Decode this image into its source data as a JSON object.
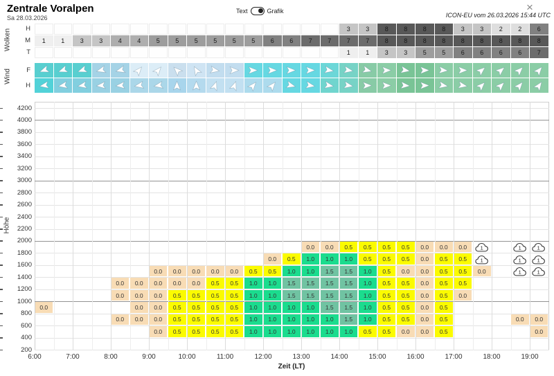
{
  "header": {
    "title": "Zentrale Voralpen",
    "date": "Sa 28.03.2026",
    "toggle_left": "Text",
    "toggle_right": "Grafik",
    "toggle_state": "Grafik",
    "model_info": "ICON-EU vom 26.03.2026 15:44 UTC",
    "close_glyph": "×"
  },
  "wolken": {
    "section_label": "Wolken",
    "value_colors": {
      "1": "#efefef",
      "2": "#dedede",
      "3": "#c5c5c5",
      "4": "#aeaeae",
      "5": "#9d9d9d",
      "6": "#818181",
      "7": "#6c6c6c",
      "8": "#585858"
    },
    "rows": [
      {
        "label": "H",
        "values": [
          null,
          null,
          null,
          null,
          null,
          null,
          null,
          null,
          null,
          null,
          null,
          null,
          null,
          null,
          null,
          null,
          3,
          3,
          8,
          8,
          8,
          8,
          3,
          3,
          2,
          2,
          6
        ]
      },
      {
        "label": "M",
        "values": [
          1,
          1,
          3,
          3,
          4,
          4,
          5,
          5,
          5,
          5,
          5,
          5,
          6,
          6,
          7,
          7,
          7,
          7,
          8,
          8,
          8,
          8,
          8,
          8,
          8,
          8,
          8
        ]
      },
      {
        "label": "T",
        "values": [
          null,
          null,
          null,
          null,
          null,
          null,
          null,
          null,
          null,
          null,
          null,
          null,
          null,
          null,
          null,
          null,
          1,
          1,
          3,
          3,
          5,
          5,
          6,
          6,
          6,
          6,
          7
        ]
      }
    ]
  },
  "wind": {
    "section_label": "Wind",
    "rows": [
      {
        "label": "F",
        "dirs": [
          160,
          160,
          160,
          165,
          165,
          -50,
          -50,
          -135,
          -120,
          10,
          0,
          0,
          0,
          0,
          0,
          10,
          10,
          15,
          0,
          10,
          0,
          5,
          0,
          -40,
          -40,
          -45,
          -50
        ],
        "colors": [
          "#58cfd0",
          "#58cfd0",
          "#58cfd0",
          "#a5d3e6",
          "#a5d3e6",
          "#dcedf7",
          "#dcedf7",
          "#cadfee",
          "#cfe4f3",
          "#c2ddef",
          "#c2ddef",
          "#66d8e2",
          "#66d8e2",
          "#66d8e2",
          "#66d8e2",
          "#6cd7d8",
          "#77d3c6",
          "#88cba6",
          "#8bcda6",
          "#79c496",
          "#79c496",
          "#8bcda6",
          "#8bcda6",
          "#8bcda6",
          "#8bcda6",
          "#8bcda6",
          "#8bcda6"
        ]
      },
      {
        "label": "H",
        "dirs": [
          170,
          170,
          170,
          175,
          175,
          170,
          170,
          -90,
          -90,
          -70,
          -70,
          -50,
          -50,
          15,
          10,
          10,
          10,
          0,
          0,
          5,
          0,
          10,
          10,
          -45,
          -45,
          -50,
          -55
        ],
        "colors": [
          "#52d2d8",
          "#82cfdf",
          "#82cfdf",
          "#99d1e3",
          "#99d1e3",
          "#abd7e9",
          "#abd7e9",
          "#a8d5ec",
          "#b4daee",
          "#c2e0f1",
          "#c2e0f1",
          "#addbed",
          "#addbed",
          "#66d8e2",
          "#66d8e2",
          "#70d5ce",
          "#77d3c6",
          "#88cba6",
          "#8bcda6",
          "#79c496",
          "#79c496",
          "#8bcda6",
          "#8bcda6",
          "#8bcda6",
          "#8bcda6",
          "#8bcda6",
          "#8bcda6"
        ]
      }
    ]
  },
  "chart_data": {
    "type": "heatmap",
    "ylabel": "Höhe",
    "xlabel": "Zeit (LT)",
    "y_ticks": [
      4200,
      4000,
      3800,
      3600,
      3400,
      3200,
      3000,
      2800,
      2600,
      2400,
      2200,
      2000,
      1800,
      1600,
      1400,
      1200,
      1000,
      800,
      600,
      400,
      200
    ],
    "x_hour_labels": [
      "6:00",
      "7:00",
      "8:00",
      "9:00",
      "10:00",
      "11:00",
      "12:00",
      "13:00",
      "14:00",
      "15:00",
      "16:00",
      "17:00",
      "18:00",
      "19:00"
    ],
    "first_col_time": "6:00",
    "col_minutes": 30,
    "n_cols": 27,
    "band_height_m": 200,
    "value_colors": {
      "0.0": "#f8dcb5",
      "0.5": "#fbfb00",
      "1.0": "#1bdc8e",
      "1.5": "#70c3a2"
    },
    "cloud_label": "1",
    "bands": [
      {
        "top": 2000,
        "bottom": 1800,
        "cells": [
          null,
          null,
          null,
          null,
          null,
          null,
          null,
          null,
          null,
          null,
          null,
          null,
          null,
          null,
          "0.0",
          "0.0",
          "0.5",
          "0.5",
          "0.5",
          "0.5",
          "0.0",
          "0.0",
          "0.0",
          "C",
          null,
          "C",
          "C"
        ]
      },
      {
        "top": 1800,
        "bottom": 1600,
        "cells": [
          null,
          null,
          null,
          null,
          null,
          null,
          null,
          null,
          null,
          null,
          null,
          null,
          "0.0",
          "0.5",
          "1.0",
          "1.0",
          "1.0",
          "0.5",
          "0.5",
          "0.5",
          "0.0",
          "0.5",
          "0.5",
          "C",
          null,
          "C",
          "C"
        ]
      },
      {
        "top": 1600,
        "bottom": 1400,
        "cells": [
          null,
          null,
          null,
          null,
          null,
          null,
          "0.0",
          "0.0",
          "0.0",
          "0.0",
          "0.0",
          "0.5",
          "0.5",
          "1.0",
          "1.0",
          "1.5",
          "1.5",
          "1.0",
          "0.5",
          "0.0",
          "0.0",
          "0.5",
          "0.5",
          "0.0",
          null,
          "C",
          "C"
        ]
      },
      {
        "top": 1400,
        "bottom": 1200,
        "cells": [
          null,
          null,
          null,
          null,
          "0.0",
          "0.0",
          "0.0",
          "0.0",
          "0.0",
          "0.5",
          "0.5",
          "1.0",
          "1.0",
          "1.5",
          "1.5",
          "1.5",
          "1.5",
          "1.0",
          "0.5",
          "0.5",
          "0.0",
          "0.5",
          "0.5",
          null,
          null,
          null,
          null
        ]
      },
      {
        "top": 1200,
        "bottom": 1000,
        "cells": [
          null,
          null,
          null,
          null,
          "0.0",
          "0.0",
          "0.0",
          "0.5",
          "0.5",
          "0.5",
          "0.5",
          "1.0",
          "1.0",
          "1.5",
          "1.5",
          "1.5",
          "1.5",
          "1.0",
          "0.5",
          "0.5",
          "0.0",
          "0.5",
          "0.0",
          null,
          null,
          null,
          null
        ]
      },
      {
        "top": 1000,
        "bottom": 800,
        "cells": [
          "0.0",
          null,
          null,
          null,
          null,
          "0.0",
          "0.0",
          "0.5",
          "0.5",
          "0.5",
          "0.5",
          "1.0",
          "1.0",
          "1.0",
          "1.0",
          "1.5",
          "1.5",
          "1.0",
          "0.5",
          "0.5",
          "0.0",
          "0.5",
          null,
          null,
          null,
          null,
          null
        ]
      },
      {
        "top": 800,
        "bottom": 600,
        "cells": [
          null,
          null,
          null,
          null,
          "0.0",
          "0.0",
          "0.0",
          "0.5",
          "0.5",
          "0.5",
          "0.5",
          "1.0",
          "1.0",
          "1.0",
          "1.0",
          "1.0",
          "1.5",
          "1.0",
          "0.5",
          "0.5",
          "0.0",
          "0.5",
          null,
          null,
          null,
          "0.0",
          "0.0"
        ]
      },
      {
        "top": 600,
        "bottom": 400,
        "cells": [
          null,
          null,
          null,
          null,
          null,
          null,
          "0.0",
          "0.5",
          "0.5",
          "0.5",
          "0.5",
          "1.0",
          "1.0",
          "1.0",
          "1.0",
          "1.0",
          "1.0",
          "0.5",
          "0.5",
          "0.0",
          "0.0",
          "0.5",
          null,
          null,
          null,
          null,
          "0.0"
        ]
      }
    ]
  }
}
